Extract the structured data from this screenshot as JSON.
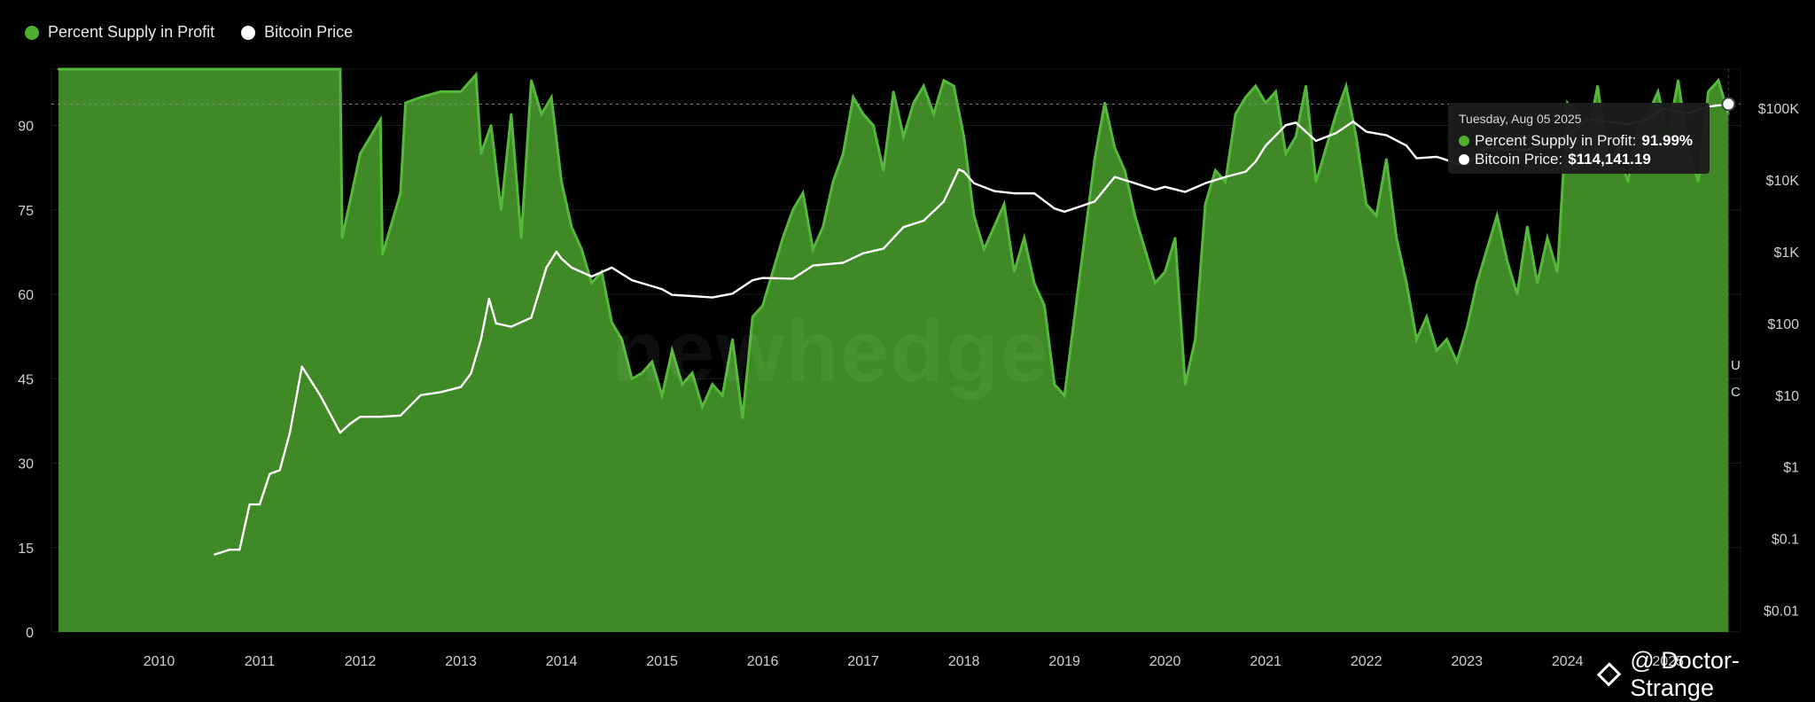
{
  "legend": [
    {
      "label": "Percent Supply in Profit",
      "color": "#4caf2f"
    },
    {
      "label": "Bitcoin Price",
      "color": "#ffffff"
    }
  ],
  "tooltip": {
    "date": "Tuesday, Aug 05 2025",
    "supply_label": "Percent Supply in Profit:",
    "supply_value": "91.99%",
    "price_label": "Bitcoin Price:",
    "price_value": "$114,141.19"
  },
  "watermark": "newhedge",
  "brand": {
    "icon": "binance-diamond-icon",
    "text": "@ Doctor-Strange"
  },
  "side_labels": [
    "U",
    "C"
  ],
  "colors": {
    "fill": "#3f8a26",
    "spike": "#56b83a",
    "price": "#ffffff",
    "background": "#000000",
    "grid": "#1c1c1c"
  },
  "chart_data": {
    "type": "area",
    "title": "",
    "xlabel": "",
    "ylabel_left": "",
    "ylabel_right": "",
    "x_ticks": [
      "2010",
      "2011",
      "2012",
      "2013",
      "2014",
      "2015",
      "2016",
      "2017",
      "2018",
      "2019",
      "2020",
      "2021",
      "2022",
      "2023",
      "2024",
      "2025"
    ],
    "y_left_ticks": [
      "0",
      "15",
      "30",
      "45",
      "60",
      "75",
      "90"
    ],
    "y_left_range": [
      0,
      100
    ],
    "y_right_ticks": [
      "$0.01",
      "$0.1",
      "$1",
      "$10",
      "$100",
      "$1K",
      "$10K",
      "$100K"
    ],
    "y_right_range": [
      0.005,
      350000
    ],
    "y_right_scale": "log",
    "grid": "horizontal",
    "legend_position": "top-left",
    "series": [
      {
        "name": "Percent Supply in Profit",
        "axis": "left",
        "x": [
          2009.0,
          2011.8,
          2011.82,
          2012.0,
          2012.2,
          2012.22,
          2012.4,
          2012.45,
          2012.6,
          2012.8,
          2013.0,
          2013.15,
          2013.2,
          2013.3,
          2013.4,
          2013.5,
          2013.6,
          2013.7,
          2013.8,
          2013.9,
          2014.0,
          2014.1,
          2014.2,
          2014.3,
          2014.4,
          2014.5,
          2014.6,
          2014.7,
          2014.8,
          2014.9,
          2015.0,
          2015.1,
          2015.2,
          2015.3,
          2015.4,
          2015.5,
          2015.6,
          2015.7,
          2015.8,
          2015.9,
          2016.0,
          2016.1,
          2016.2,
          2016.3,
          2016.4,
          2016.5,
          2016.6,
          2016.7,
          2016.8,
          2016.9,
          2017.0,
          2017.1,
          2017.2,
          2017.3,
          2017.4,
          2017.5,
          2017.6,
          2017.7,
          2017.8,
          2017.9,
          2018.0,
          2018.1,
          2018.2,
          2018.3,
          2018.4,
          2018.5,
          2018.6,
          2018.7,
          2018.8,
          2018.9,
          2019.0,
          2019.1,
          2019.2,
          2019.3,
          2019.4,
          2019.5,
          2019.6,
          2019.7,
          2019.8,
          2019.9,
          2020.0,
          2020.1,
          2020.2,
          2020.3,
          2020.4,
          2020.5,
          2020.6,
          2020.7,
          2020.8,
          2020.9,
          2021.0,
          2021.1,
          2021.2,
          2021.3,
          2021.4,
          2021.5,
          2021.6,
          2021.7,
          2021.8,
          2021.9,
          2022.0,
          2022.1,
          2022.2,
          2022.3,
          2022.4,
          2022.5,
          2022.6,
          2022.7,
          2022.8,
          2022.9,
          2023.0,
          2023.1,
          2023.2,
          2023.3,
          2023.4,
          2023.5,
          2023.6,
          2023.7,
          2023.8,
          2023.9,
          2024.0,
          2024.1,
          2024.2,
          2024.3,
          2024.4,
          2024.5,
          2024.6,
          2024.7,
          2024.8,
          2024.9,
          2025.0,
          2025.1,
          2025.2,
          2025.3,
          2025.4,
          2025.5,
          2025.6
        ],
        "values": [
          100,
          100,
          70,
          85,
          91,
          67,
          78,
          94,
          95,
          96,
          96,
          99,
          85,
          90,
          75,
          92,
          70,
          98,
          92,
          95,
          80,
          72,
          68,
          62,
          64,
          55,
          52,
          45,
          46,
          48,
          42,
          50,
          44,
          46,
          40,
          44,
          42,
          52,
          38,
          56,
          58,
          64,
          70,
          75,
          78,
          68,
          72,
          80,
          85,
          95,
          92,
          90,
          82,
          96,
          88,
          94,
          97,
          92,
          98,
          97,
          88,
          74,
          68,
          72,
          76,
          64,
          70,
          62,
          58,
          44,
          42,
          56,
          70,
          84,
          94,
          86,
          82,
          74,
          68,
          62,
          64,
          70,
          44,
          52,
          76,
          82,
          80,
          92,
          95,
          97,
          94,
          96,
          85,
          88,
          97,
          80,
          86,
          92,
          97,
          88,
          76,
          74,
          84,
          70,
          62,
          52,
          56,
          50,
          52,
          48,
          54,
          62,
          68,
          74,
          66,
          60,
          72,
          62,
          70,
          64,
          94,
          92,
          88,
          97,
          84,
          86,
          80,
          90,
          92,
          96,
          88,
          98,
          86,
          80,
          96,
          98,
          92
        ]
      },
      {
        "name": "Bitcoin Price",
        "axis": "right",
        "x": [
          2010.55,
          2010.7,
          2010.8,
          2010.9,
          2011.0,
          2011.1,
          2011.2,
          2011.3,
          2011.42,
          2011.6,
          2011.8,
          2011.9,
          2012.0,
          2012.2,
          2012.4,
          2012.6,
          2012.8,
          2013.0,
          2013.1,
          2013.2,
          2013.28,
          2013.35,
          2013.5,
          2013.7,
          2013.85,
          2013.95,
          2014.0,
          2014.1,
          2014.3,
          2014.5,
          2014.7,
          2014.9,
          2015.0,
          2015.1,
          2015.3,
          2015.5,
          2015.7,
          2015.9,
          2016.0,
          2016.3,
          2016.5,
          2016.8,
          2017.0,
          2017.2,
          2017.4,
          2017.6,
          2017.8,
          2017.95,
          2018.0,
          2018.1,
          2018.3,
          2018.5,
          2018.7,
          2018.9,
          2019.0,
          2019.3,
          2019.5,
          2019.7,
          2019.9,
          2020.0,
          2020.2,
          2020.4,
          2020.6,
          2020.8,
          2020.9,
          2021.0,
          2021.2,
          2021.3,
          2021.5,
          2021.7,
          2021.87,
          2022.0,
          2022.2,
          2022.4,
          2022.5,
          2022.7,
          2022.9,
          2023.0,
          2023.2,
          2023.4,
          2023.6,
          2023.8,
          2024.0,
          2024.2,
          2024.4,
          2024.6,
          2024.8,
          2024.95,
          2025.0,
          2025.2,
          2025.4,
          2025.6
        ],
        "values": [
          0.06,
          0.07,
          0.07,
          0.3,
          0.3,
          0.8,
          0.9,
          3,
          25,
          10,
          3,
          4,
          5,
          5,
          5.2,
          10,
          11,
          13,
          20,
          60,
          220,
          100,
          90,
          120,
          600,
          1000,
          800,
          600,
          450,
          600,
          400,
          330,
          300,
          250,
          240,
          230,
          260,
          400,
          430,
          420,
          640,
          700,
          950,
          1100,
          2200,
          2700,
          5000,
          14000,
          13000,
          9000,
          7000,
          6500,
          6500,
          4000,
          3600,
          5000,
          11000,
          9000,
          7300,
          8000,
          6800,
          9000,
          11000,
          13000,
          18000,
          30000,
          58000,
          63000,
          35000,
          45000,
          65000,
          47000,
          42000,
          30000,
          20000,
          21000,
          17000,
          16500,
          28000,
          27000,
          26000,
          34000,
          42000,
          70000,
          65000,
          60000,
          70000,
          100000,
          95000,
          85000,
          105000,
          114141
        ]
      }
    ]
  }
}
